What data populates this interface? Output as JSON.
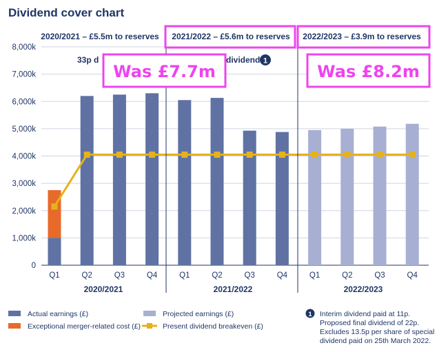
{
  "title": "Dividend cover chart",
  "periods": [
    "2020/2021 – £5.5m to reserves",
    "2021/2022 – £5.6m to reserves",
    "2022/2023 – £3.9m to reserves"
  ],
  "subnote_left": "33p d",
  "subnote_right": "dividend",
  "subnote_marker": "1",
  "annotations": [
    "Was £7.7m",
    "Was £8.2m"
  ],
  "colors": {
    "actual": "#5f72a3",
    "projected": "#a7b0d2",
    "exceptional": "#e86a2a",
    "breakeven": "#e5b21c",
    "highlight": "#ee44ee",
    "text": "#1f3566"
  },
  "chart_data": {
    "type": "bar",
    "title": "Dividend cover chart",
    "categories": [
      "Q1",
      "Q2",
      "Q3",
      "Q4",
      "Q1",
      "Q2",
      "Q3",
      "Q4",
      "Q1",
      "Q2",
      "Q3",
      "Q4"
    ],
    "groups": [
      "2020/2021",
      "2021/2022",
      "2022/2023"
    ],
    "y_ticks": [
      "0",
      "1,000k",
      "2,000k",
      "3,000k",
      "4,000k",
      "5,000k",
      "6,000k",
      "7,000k",
      "8,000k"
    ],
    "ylim": [
      0,
      8000
    ],
    "grid": true,
    "series": [
      {
        "name": "Actual earnings (£)",
        "kind": "bar",
        "values": [
          1000,
          6200,
          6250,
          6300,
          6050,
          6130,
          4930,
          4880,
          null,
          null,
          null,
          null
        ]
      },
      {
        "name": "Exceptional merger-related cost (£)",
        "kind": "stacked-bar",
        "values": [
          1750,
          0,
          0,
          0,
          0,
          0,
          0,
          0,
          null,
          null,
          null,
          null
        ]
      },
      {
        "name": "Projected earnings (£)",
        "kind": "bar",
        "values": [
          null,
          null,
          null,
          null,
          null,
          null,
          null,
          null,
          4950,
          5000,
          5080,
          5180
        ]
      },
      {
        "name": "Present dividend breakeven (£)",
        "kind": "line",
        "values": [
          2150,
          4050,
          4050,
          4050,
          4050,
          4050,
          4050,
          4050,
          4050,
          4050,
          4050,
          4050
        ]
      }
    ]
  },
  "legend": [
    {
      "label": "Actual earnings (£)",
      "icon": "bar-swatch"
    },
    {
      "label": "Exceptional merger-related cost (£)",
      "icon": "bar-swatch"
    },
    {
      "label": "Projected earnings (£)",
      "icon": "bar-swatch"
    },
    {
      "label": "Present dividend breakeven (£)",
      "icon": "line-marker"
    }
  ],
  "note": {
    "marker": "1",
    "lines": [
      "Interim dividend paid at 11p.",
      "Proposed final dividend of 22p.",
      "Excludes 13.5p per share of special",
      "dividend paid on 25th March 2022."
    ]
  }
}
